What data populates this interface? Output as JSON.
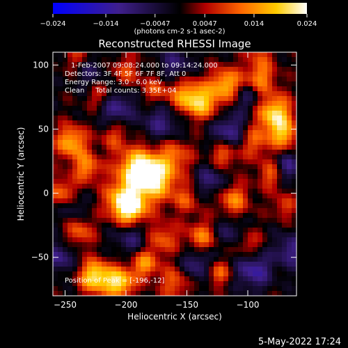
{
  "chart_data": {
    "type": "heatmap",
    "title": "Reconstructed RHESSI Image",
    "xlabel": "Heliocentric X (arcsec)",
    "ylabel": "Heliocentric Y (arcsec)",
    "xlim": [
      -260,
      -60
    ],
    "ylim": [
      -80,
      110
    ],
    "x_ticks": [
      -250,
      -200,
      -150,
      -100
    ],
    "y_ticks": [
      -50,
      0,
      50,
      100
    ],
    "colorbar": {
      "min": -0.024,
      "max": 0.024,
      "ticks": [
        "-0.024",
        "-0.014",
        "-0.0047",
        "0.0047",
        "0.014",
        "0.024"
      ],
      "unit_label": "(photons cm-2 s-1 asec-2)",
      "colormap": [
        "#0000ff",
        "#3f1f8c",
        "#000000",
        "#b20000",
        "#ff6600",
        "#ffcc00",
        "#ffffff"
      ]
    },
    "annotations": {
      "time_range": "1-Feb-2007 09:08:24.000 to 09:14:24.000",
      "detectors": "Detectors: 3F 4F 5F 6F 7F 8F, Att 0",
      "energy_range": "Energy Range: 3.0 - 6.0 keV",
      "method_counts": "Clean     Total counts: 3.35E+04",
      "position": "Position of Peak = [-196,-12]"
    },
    "grid": false,
    "legend": "none"
  },
  "footer": {
    "date": "5-May-2022 17:24"
  }
}
